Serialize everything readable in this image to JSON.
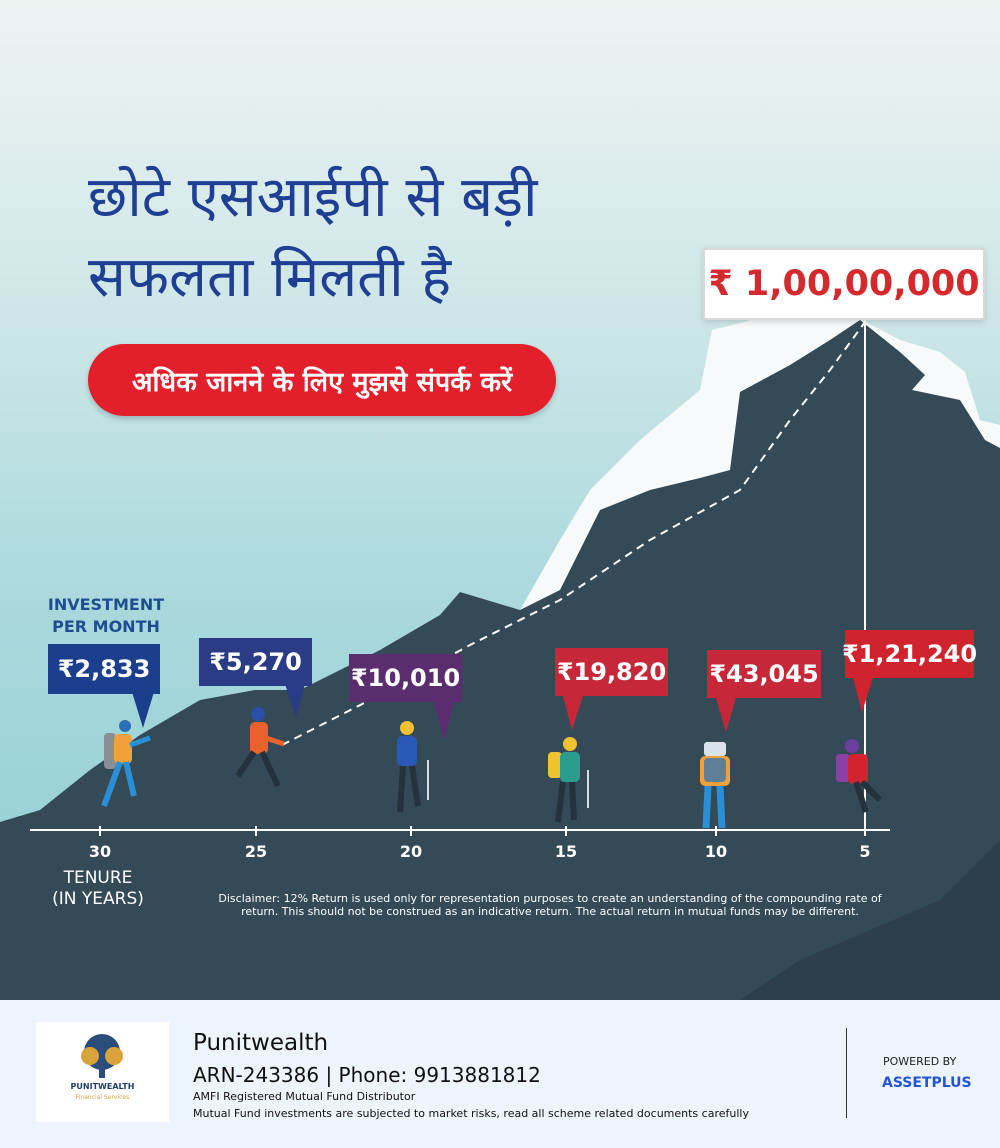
{
  "headline": {
    "line1": "छोटे एसआईपी से बड़ी",
    "line2": "सफलता मिलती है"
  },
  "cta_label": "अधिक जानने के लिए मुझसे संपर्क करें",
  "target_amount": "₹ 1,00,00,000",
  "investment_label": {
    "line1": "INVESTMENT",
    "line2": "PER MONTH"
  },
  "tenure_label": {
    "line1": "TENURE",
    "line2": "(IN YEARS)"
  },
  "milestones": [
    {
      "tenure": "30",
      "amount": "₹2,833",
      "color": "#1c3f8d"
    },
    {
      "tenure": "25",
      "amount": "₹5,270",
      "color": "#2b3b86"
    },
    {
      "tenure": "20",
      "amount": "₹10,010",
      "color": "#5a2e6e"
    },
    {
      "tenure": "15",
      "amount": "₹19,820",
      "color": "#c6283a"
    },
    {
      "tenure": "10",
      "amount": "₹43,045",
      "color": "#c6283a"
    },
    {
      "tenure": "5",
      "amount": "₹1,21,240",
      "color": "#d0232e"
    }
  ],
  "disclaimer": "Disclaimer: 12% Return is used only for representation purposes to create an understanding of the compounding rate of return. This should not be construed as an indicative return. The actual return in mutual funds may be different.",
  "footer": {
    "logo_text": "PUNITWEALTH",
    "logo_subtext": "Financial Services",
    "brand": "Punitwealth",
    "arn_phone": "ARN-243386 | Phone: 9913881812",
    "amfi": "AMFI Registered Mutual Fund Distributor",
    "risk": "Mutual Fund investments are subjected to market risks, read all scheme related documents carefully",
    "powered_by": "POWERED BY",
    "partner": "ASSETPLUS"
  },
  "colors": {
    "headline": "#1f3f95",
    "cta": "#e21f2b",
    "mountain": "#344a57",
    "target_text": "#d42a2e"
  }
}
